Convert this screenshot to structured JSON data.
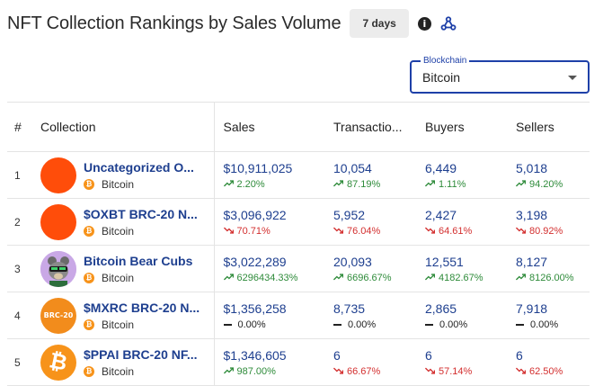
{
  "header": {
    "title": "NFT Collection Rankings by Sales Volume",
    "period_label": "7 days",
    "info_icon": "info-icon",
    "webhook_icon": "webhook-icon"
  },
  "blockchain_select": {
    "legend": "Blockchain",
    "value": "Bitcoin"
  },
  "table": {
    "headers": [
      "#",
      "Collection",
      "Sales",
      "Transactio...",
      "Buyers",
      "Sellers"
    ],
    "rows": [
      {
        "rank": "1",
        "name": "Uncategorized O...",
        "chain": "Bitcoin",
        "avatar": {
          "type": "solid",
          "color": "#ff4d0a"
        },
        "sales": "$10,911,025",
        "sales_change": "2.20%",
        "sales_dir": "up",
        "transactions": "10,054",
        "transactions_change": "87.19%",
        "transactions_dir": "up",
        "buyers": "6,449",
        "buyers_change": "1.11%",
        "buyers_dir": "up",
        "sellers": "5,018",
        "sellers_change": "94.20%",
        "sellers_dir": "up"
      },
      {
        "rank": "2",
        "name": "$OXBT BRC-20 N...",
        "chain": "Bitcoin",
        "avatar": {
          "type": "solid",
          "color": "#ff4d0a"
        },
        "sales": "$3,096,922",
        "sales_change": "70.71%",
        "sales_dir": "down",
        "transactions": "5,952",
        "transactions_change": "76.04%",
        "transactions_dir": "down",
        "buyers": "2,427",
        "buyers_change": "64.61%",
        "buyers_dir": "down",
        "sellers": "3,198",
        "sellers_change": "80.92%",
        "sellers_dir": "down"
      },
      {
        "rank": "3",
        "name": "Bitcoin Bear Cubs",
        "chain": "Bitcoin",
        "avatar": {
          "type": "bear",
          "color": "#c9a8e6"
        },
        "sales": "$3,022,289",
        "sales_change": "6296434.33%",
        "sales_dir": "up",
        "transactions": "20,093",
        "transactions_change": "6696.67%",
        "transactions_dir": "up",
        "buyers": "12,551",
        "buyers_change": "4182.67%",
        "buyers_dir": "up",
        "sellers": "8,127",
        "sellers_change": "8126.00%",
        "sellers_dir": "up"
      },
      {
        "rank": "4",
        "name": "$MXRC BRC-20 N...",
        "chain": "Bitcoin",
        "avatar": {
          "type": "brc20",
          "color": "#f28c1c",
          "text": "BRC-20"
        },
        "sales": "$1,356,258",
        "sales_change": "0.00%",
        "sales_dir": "flat",
        "transactions": "8,735",
        "transactions_change": "0.00%",
        "transactions_dir": "flat",
        "buyers": "2,865",
        "buyers_change": "0.00%",
        "buyers_dir": "flat",
        "sellers": "7,918",
        "sellers_change": "0.00%",
        "sellers_dir": "flat"
      },
      {
        "rank": "5",
        "name": "$PPAI BRC-20 NF...",
        "chain": "Bitcoin",
        "avatar": {
          "type": "btc",
          "color": "#f7931a",
          "text": "₿"
        },
        "sales": "$1,346,605",
        "sales_change": "987.00%",
        "sales_dir": "up",
        "transactions": "6",
        "transactions_change": "66.67%",
        "transactions_dir": "down",
        "buyers": "6",
        "buyers_change": "57.14%",
        "buyers_dir": "down",
        "sellers": "6",
        "sellers_change": "62.50%",
        "sellers_dir": "down"
      }
    ]
  },
  "colors": {
    "accent": "#1e40a8",
    "link": "#1e3f8f",
    "up": "#2e8b3a",
    "down": "#d32f2f",
    "bitcoin": "#f7931a"
  }
}
